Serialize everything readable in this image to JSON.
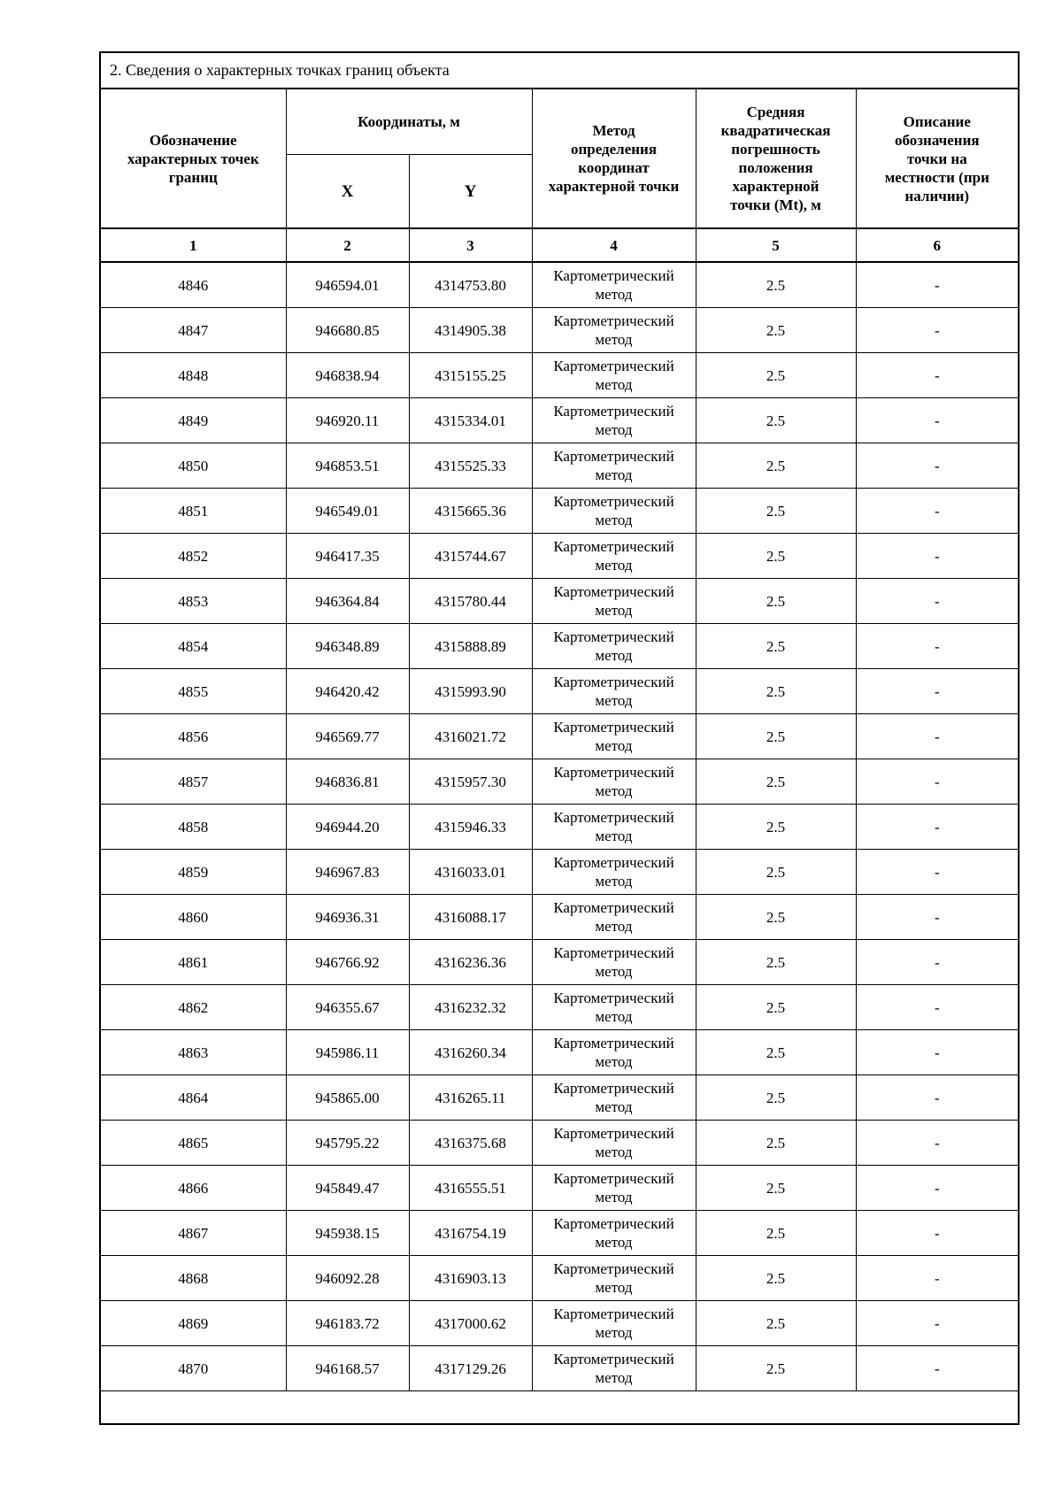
{
  "page": {
    "background_color": "#ffffff",
    "text_color": "#000000"
  },
  "section": {
    "title": "2. Сведения о характерных точках границ объекта"
  },
  "table": {
    "headers": {
      "point_designation": "Обозначение\nхарактерных точек\nграниц",
      "coordinates_group": "Координаты, м",
      "coordinate_x": "X",
      "coordinate_y": "Y",
      "method": "Метод\nопределения\nкоординат\nхарактерной точки",
      "mt_error": "Средняя\nквадратическая\nпогрешность\nположения\nхарактерной\nточки (Mt), м",
      "description": "Описание\nобозначения\nточки на\nместности (при\nналичии)"
    },
    "column_numbers": [
      "1",
      "2",
      "3",
      "4",
      "5",
      "6"
    ],
    "rows": [
      {
        "point": "4846",
        "x": "946594.01",
        "y": "4314753.80",
        "method": "Картометрический\nметод",
        "mt": "2.5",
        "description": "-"
      },
      {
        "point": "4847",
        "x": "946680.85",
        "y": "4314905.38",
        "method": "Картометрический\nметод",
        "mt": "2.5",
        "description": "-"
      },
      {
        "point": "4848",
        "x": "946838.94",
        "y": "4315155.25",
        "method": "Картометрический\nметод",
        "mt": "2.5",
        "description": "-"
      },
      {
        "point": "4849",
        "x": "946920.11",
        "y": "4315334.01",
        "method": "Картометрический\nметод",
        "mt": "2.5",
        "description": "-"
      },
      {
        "point": "4850",
        "x": "946853.51",
        "y": "4315525.33",
        "method": "Картометрический\nметод",
        "mt": "2.5",
        "description": "-"
      },
      {
        "point": "4851",
        "x": "946549.01",
        "y": "4315665.36",
        "method": "Картометрический\nметод",
        "mt": "2.5",
        "description": "-"
      },
      {
        "point": "4852",
        "x": "946417.35",
        "y": "4315744.67",
        "method": "Картометрический\nметод",
        "mt": "2.5",
        "description": "-"
      },
      {
        "point": "4853",
        "x": "946364.84",
        "y": "4315780.44",
        "method": "Картометрический\nметод",
        "mt": "2.5",
        "description": "-"
      },
      {
        "point": "4854",
        "x": "946348.89",
        "y": "4315888.89",
        "method": "Картометрический\nметод",
        "mt": "2.5",
        "description": "-"
      },
      {
        "point": "4855",
        "x": "946420.42",
        "y": "4315993.90",
        "method": "Картометрический\nметод",
        "mt": "2.5",
        "description": "-"
      },
      {
        "point": "4856",
        "x": "946569.77",
        "y": "4316021.72",
        "method": "Картометрический\nметод",
        "mt": "2.5",
        "description": "-"
      },
      {
        "point": "4857",
        "x": "946836.81",
        "y": "4315957.30",
        "method": "Картометрический\nметод",
        "mt": "2.5",
        "description": "-"
      },
      {
        "point": "4858",
        "x": "946944.20",
        "y": "4315946.33",
        "method": "Картометрический\nметод",
        "mt": "2.5",
        "description": "-"
      },
      {
        "point": "4859",
        "x": "946967.83",
        "y": "4316033.01",
        "method": "Картометрический\nметод",
        "mt": "2.5",
        "description": "-"
      },
      {
        "point": "4860",
        "x": "946936.31",
        "y": "4316088.17",
        "method": "Картометрический\nметод",
        "mt": "2.5",
        "description": "-"
      },
      {
        "point": "4861",
        "x": "946766.92",
        "y": "4316236.36",
        "method": "Картометрический\nметод",
        "mt": "2.5",
        "description": "-"
      },
      {
        "point": "4862",
        "x": "946355.67",
        "y": "4316232.32",
        "method": "Картометрический\nметод",
        "mt": "2.5",
        "description": "-"
      },
      {
        "point": "4863",
        "x": "945986.11",
        "y": "4316260.34",
        "method": "Картометрический\nметод",
        "mt": "2.5",
        "description": "-"
      },
      {
        "point": "4864",
        "x": "945865.00",
        "y": "4316265.11",
        "method": "Картометрический\nметод",
        "mt": "2.5",
        "description": "-"
      },
      {
        "point": "4865",
        "x": "945795.22",
        "y": "4316375.68",
        "method": "Картометрический\nметод",
        "mt": "2.5",
        "description": "-"
      },
      {
        "point": "4866",
        "x": "945849.47",
        "y": "4316555.51",
        "method": "Картометрический\nметод",
        "mt": "2.5",
        "description": "-"
      },
      {
        "point": "4867",
        "x": "945938.15",
        "y": "4316754.19",
        "method": "Картометрический\nметод",
        "mt": "2.5",
        "description": "-"
      },
      {
        "point": "4868",
        "x": "946092.28",
        "y": "4316903.13",
        "method": "Картометрический\nметод",
        "mt": "2.5",
        "description": "-"
      },
      {
        "point": "4869",
        "x": "946183.72",
        "y": "4317000.62",
        "method": "Картометрический\nметод",
        "mt": "2.5",
        "description": "-"
      },
      {
        "point": "4870",
        "x": "946168.57",
        "y": "4317129.26",
        "method": "Картометрический\nметод",
        "mt": "2.5",
        "description": "-"
      }
    ]
  }
}
